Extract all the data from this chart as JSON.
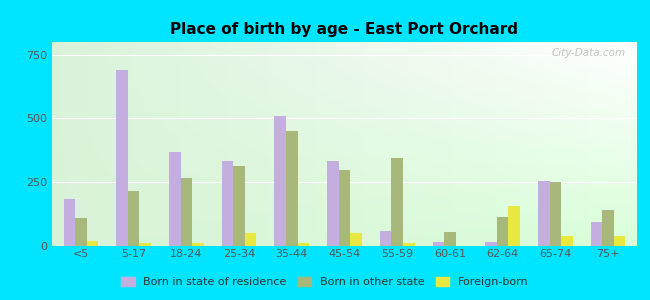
{
  "title": "Place of birth by age - East Port Orchard",
  "categories": [
    "<5",
    "5-17",
    "18-24",
    "25-34",
    "35-44",
    "45-54",
    "55-59",
    "60-61",
    "62-64",
    "65-74",
    "75+"
  ],
  "born_in_state": [
    185,
    690,
    370,
    335,
    510,
    335,
    60,
    15,
    15,
    255,
    95
  ],
  "born_other_state": [
    110,
    215,
    265,
    315,
    450,
    300,
    345,
    55,
    115,
    250,
    140
  ],
  "foreign_born": [
    18,
    12,
    12,
    50,
    12,
    50,
    12,
    0,
    155,
    40,
    40
  ],
  "bar_colors": {
    "born_in_state": "#c4aee0",
    "born_other_state": "#a8b87a",
    "foreign_born": "#e8e840"
  },
  "ylim": [
    0,
    800
  ],
  "yticks": [
    0,
    250,
    500,
    750
  ],
  "background_color_outer": "#00e5ff",
  "watermark": "City-Data.com",
  "legend_labels": [
    "Born in state of residence",
    "Born in other state",
    "Foreign-born"
  ]
}
